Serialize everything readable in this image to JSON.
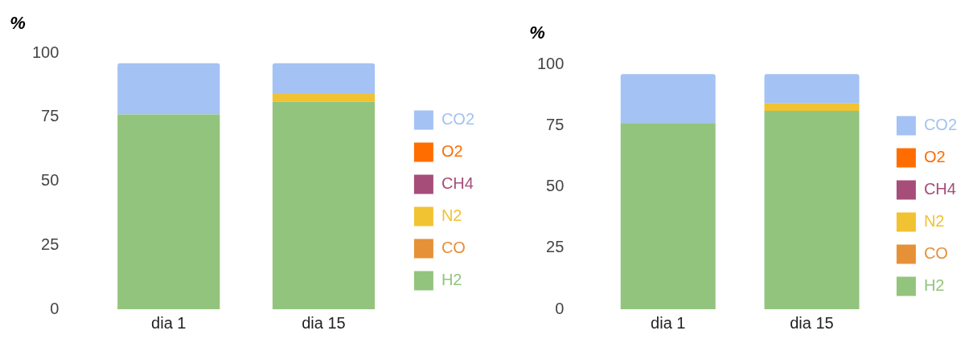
{
  "chart_data": [
    {
      "type": "bar",
      "ylabel": "%",
      "categories": [
        "dia 1",
        "dia 15"
      ],
      "stacked": true,
      "ylim": [
        0,
        100
      ],
      "yticks": [
        0,
        25,
        50,
        75,
        100
      ],
      "grid": false,
      "legend": "right",
      "series": [
        {
          "name": "H2",
          "color": "#93c47d",
          "values": [
            76,
            81
          ]
        },
        {
          "name": "CO",
          "color": "#e69138",
          "values": [
            0,
            0
          ]
        },
        {
          "name": "N2",
          "color": "#f1c232",
          "values": [
            0,
            3
          ]
        },
        {
          "name": "CH4",
          "color": "#a64d79",
          "values": [
            0,
            0
          ]
        },
        {
          "name": "O2",
          "color": "#ff6d01",
          "values": [
            0,
            0
          ]
        },
        {
          "name": "CO2",
          "color": "#a4c2f4",
          "values": [
            20,
            12
          ]
        }
      ]
    },
    {
      "type": "bar",
      "ylabel": "%",
      "categories": [
        "dia 1",
        "dia 15"
      ],
      "stacked": true,
      "ylim": [
        0,
        100
      ],
      "yticks": [
        0,
        25,
        50,
        75,
        100
      ],
      "grid": false,
      "legend": "right",
      "series": [
        {
          "name": "H2",
          "color": "#93c47d",
          "values": [
            76,
            81
          ]
        },
        {
          "name": "CO",
          "color": "#e69138",
          "values": [
            0,
            0
          ]
        },
        {
          "name": "N2",
          "color": "#f1c232",
          "values": [
            0,
            3
          ]
        },
        {
          "name": "CH4",
          "color": "#a64d79",
          "values": [
            0,
            0
          ]
        },
        {
          "name": "O2",
          "color": "#ff6d01",
          "values": [
            0,
            0
          ]
        },
        {
          "name": "CO2",
          "color": "#a4c2f4",
          "values": [
            20,
            12
          ]
        }
      ]
    }
  ]
}
